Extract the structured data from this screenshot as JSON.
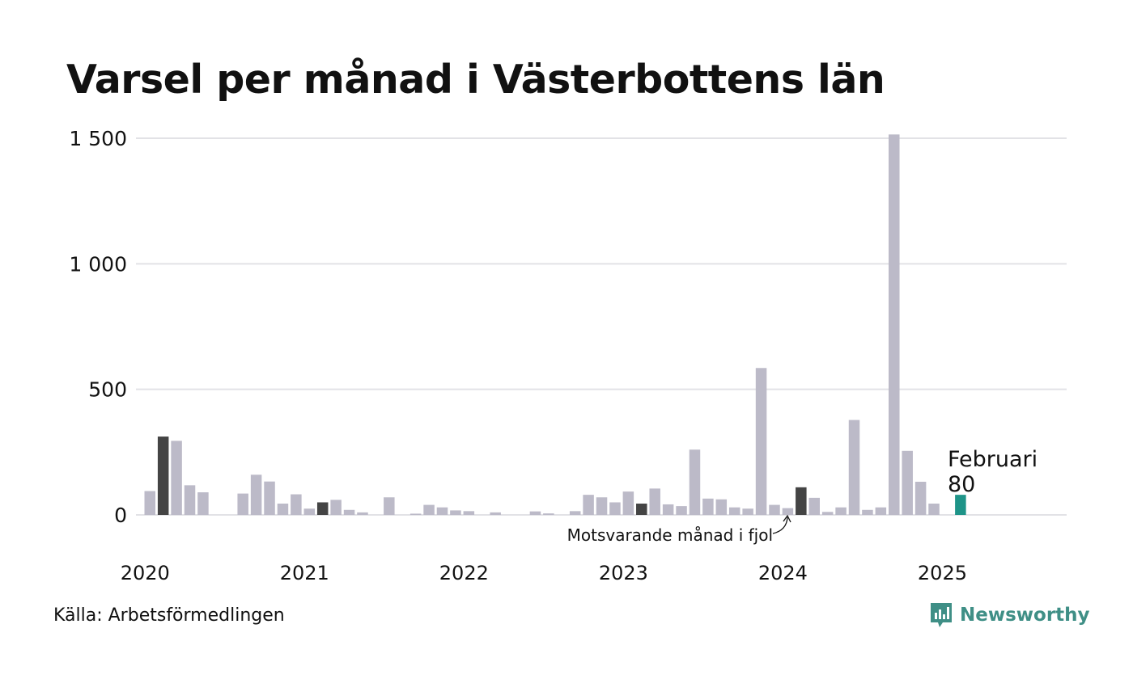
{
  "chart_data": {
    "type": "bar",
    "title": "Varsel per månad i Västerbottens län",
    "ylim": [
      0,
      1500
    ],
    "yticks": [
      0,
      500,
      1000,
      1500
    ],
    "ytick_labels": [
      "0",
      "500",
      "1 000",
      "1 500"
    ],
    "xtick_labels": [
      "2020",
      "2021",
      "2022",
      "2023",
      "2024",
      "2025"
    ],
    "start": "2020-01",
    "grid": true,
    "colors": {
      "default": "#bcbac8",
      "same_month": "#444444",
      "current": "#1e9488",
      "grid": "#e2e2e6"
    },
    "series": [
      {
        "values": [
          95,
          312,
          295,
          118,
          90,
          0,
          0,
          85,
          160,
          133,
          45,
          82,
          25,
          50,
          60,
          20,
          10,
          0,
          70,
          0,
          5,
          40,
          30,
          18,
          15,
          0,
          10,
          0,
          0,
          14,
          6,
          0,
          15,
          80,
          70,
          50,
          93,
          45,
          105,
          42,
          35,
          260,
          65,
          62,
          30,
          25,
          585,
          40,
          27,
          110,
          68,
          12,
          30,
          378,
          20,
          30,
          1515,
          255,
          132,
          45,
          0,
          80
        ],
        "highlight_indices": [
          1,
          13,
          37,
          49
        ],
        "current_index": 61
      }
    ],
    "annotations": {
      "current_label": "Februari",
      "current_value": "80",
      "same_month_label": "Motsvarande månad i fjol"
    }
  },
  "footer": {
    "source": "Källa: Arbetsförmedlingen",
    "brand": "Newsworthy"
  }
}
